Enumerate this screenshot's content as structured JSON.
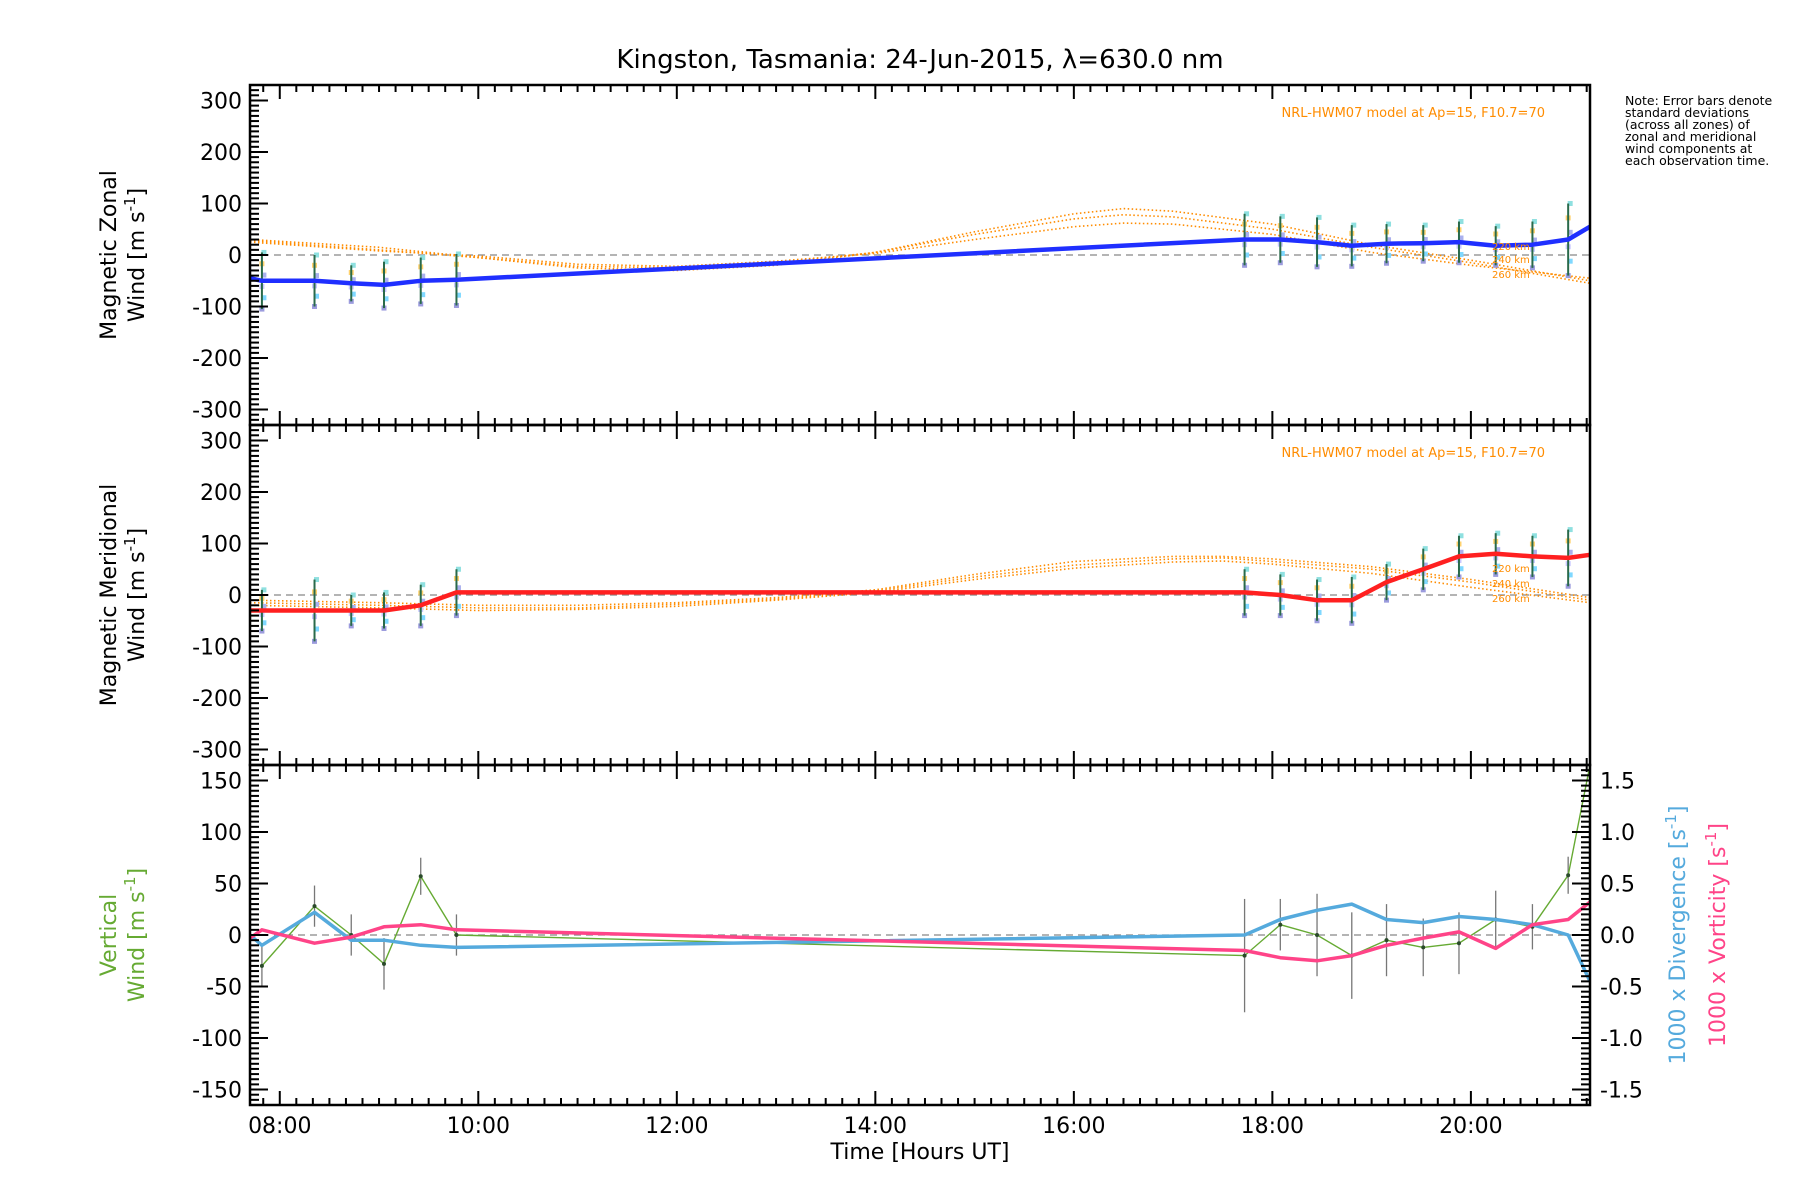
{
  "chart_data": {
    "type": "line",
    "title": "Kingston, Tasmania: 24-Jun-2015, λ=630.0 nm",
    "note": "Note: Error bars denote standard deviations (across all zones) of zonal and meridional wind components at each observation time.",
    "xlabel": "Time [Hours UT]",
    "xlim": [
      7.7,
      21.2
    ],
    "x_ticks": [
      {
        "value": 8,
        "label": "08:00"
      },
      {
        "value": 10,
        "label": "10:00"
      },
      {
        "value": 12,
        "label": "12:00"
      },
      {
        "value": 14,
        "label": "14:00"
      },
      {
        "value": 16,
        "label": "16:00"
      },
      {
        "value": 18,
        "label": "18:00"
      },
      {
        "value": 20,
        "label": "20:00"
      }
    ],
    "obs_times": [
      7.82,
      8.35,
      8.72,
      9.05,
      9.42,
      9.78,
      17.72,
      18.08,
      18.45,
      18.8,
      19.15,
      19.52,
      19.88,
      20.25,
      20.62,
      20.98
    ],
    "panels": [
      {
        "id": "zonal",
        "ylabel_line1": "Magnetic Zonal",
        "ylabel_line2": "Wind [m s",
        "ylabel_sup": "-1",
        "ylabel_close": "]",
        "ylim": [
          -330,
          330
        ],
        "yticks": [
          -300,
          -200,
          -100,
          0,
          100,
          200,
          300
        ],
        "model_label": "NRL-HWM07 model at Ap=15, F10.7=70",
        "altitude_labels": [
          "220 km",
          "240 km",
          "260 km"
        ],
        "series": {
          "name": "zonal",
          "color": "#1f2fff",
          "x": [
            7.7,
            7.82,
            8.35,
            8.72,
            9.05,
            9.42,
            9.78,
            17.72,
            18.08,
            18.45,
            18.8,
            19.15,
            19.52,
            19.88,
            20.25,
            20.62,
            20.98,
            21.2
          ],
          "y": [
            -45,
            -50,
            -50,
            -55,
            -58,
            -50,
            -48,
            30,
            30,
            25,
            18,
            22,
            23,
            25,
            18,
            20,
            30,
            55
          ],
          "err": [
            null,
            55,
            50,
            35,
            45,
            45,
            50,
            50,
            45,
            48,
            40,
            38,
            35,
            40,
            38,
            45,
            70,
            null
          ]
        },
        "models": [
          {
            "x": [
              7.7,
              9,
              10,
              11,
              12,
              13,
              14,
              15,
              16,
              16.5,
              17,
              18,
              19,
              20,
              21.2
            ],
            "y": [
              30,
              15,
              -5,
              -25,
              -30,
              -20,
              5,
              45,
              80,
              90,
              85,
              60,
              20,
              -10,
              -50
            ]
          },
          {
            "x": [
              7.7,
              9,
              10,
              11,
              12,
              13,
              14,
              15,
              16,
              16.5,
              17,
              18,
              19,
              20,
              21.2
            ],
            "y": [
              28,
              10,
              -5,
              -22,
              -25,
              -15,
              5,
              40,
              70,
              78,
              74,
              50,
              15,
              -15,
              -55
            ]
          },
          {
            "x": [
              7.7,
              9,
              10,
              11,
              12,
              13,
              14,
              15,
              16,
              16.5,
              17,
              18,
              19,
              20,
              21.2
            ],
            "y": [
              25,
              8,
              -2,
              -18,
              -22,
              -12,
              3,
              30,
              55,
              62,
              60,
              40,
              5,
              -20,
              -45
            ]
          }
        ]
      },
      {
        "id": "meridional",
        "ylabel_line1": "Magnetic Meridional",
        "ylabel_line2": "Wind [m s",
        "ylabel_sup": "-1",
        "ylabel_close": "]",
        "ylim": [
          -330,
          330
        ],
        "yticks": [
          -300,
          -200,
          -100,
          0,
          100,
          200,
          300
        ],
        "model_label": "NRL-HWM07 model at Ap=15, F10.7=70",
        "altitude_labels": [
          "220 km",
          "240 km",
          "260 km"
        ],
        "series": {
          "name": "meridional",
          "color": "#ff2020",
          "x": [
            7.7,
            7.82,
            8.35,
            8.72,
            9.05,
            9.42,
            9.78,
            17.72,
            18.08,
            18.45,
            18.8,
            19.15,
            19.52,
            19.88,
            20.25,
            20.62,
            20.98,
            21.2
          ],
          "y": [
            -30,
            -30,
            -30,
            -30,
            -30,
            -20,
            5,
            5,
            0,
            -10,
            -10,
            25,
            50,
            75,
            80,
            75,
            72,
            78
          ],
          "err": [
            null,
            40,
            60,
            30,
            35,
            40,
            45,
            45,
            40,
            40,
            45,
            35,
            40,
            40,
            40,
            40,
            55,
            null
          ]
        },
        "models": [
          {
            "x": [
              7.7,
              9,
              10,
              11,
              12,
              13,
              14,
              15,
              16,
              17,
              17.5,
              18,
              19,
              20,
              21.2
            ],
            "y": [
              -10,
              -15,
              -20,
              -20,
              -15,
              -5,
              10,
              40,
              65,
              75,
              75,
              70,
              55,
              30,
              -5
            ]
          },
          {
            "x": [
              7.7,
              9,
              10,
              11,
              12,
              13,
              14,
              15,
              16,
              17,
              17.5,
              18,
              19,
              20,
              21.2
            ],
            "y": [
              -15,
              -20,
              -25,
              -25,
              -18,
              -8,
              8,
              35,
              58,
              70,
              72,
              65,
              50,
              25,
              -10
            ]
          },
          {
            "x": [
              7.7,
              9,
              10,
              11,
              12,
              13,
              14,
              15,
              16,
              17,
              17.5,
              18,
              19,
              20,
              21.2
            ],
            "y": [
              -20,
              -25,
              -30,
              -28,
              -22,
              -10,
              5,
              30,
              52,
              64,
              66,
              60,
              42,
              15,
              -15
            ]
          }
        ]
      },
      {
        "id": "vertical",
        "ylabel_line1": "Vertical",
        "ylabel_line2": "Wind [m s",
        "ylabel_sup": "-1",
        "ylabel_close": "]",
        "ylabel_color": "#66aa33",
        "ylim": [
          -165,
          165
        ],
        "yticks": [
          -150,
          -100,
          -50,
          0,
          50,
          100,
          150
        ],
        "y2lim": [
          -1.65,
          1.65
        ],
        "y2ticks": [
          -1.5,
          -1.0,
          -0.5,
          0.0,
          0.5,
          1.0,
          1.5
        ],
        "y2labels": [
          {
            "text_pre": "1000 x Divergence [s",
            "sup": "-1",
            "close": "]",
            "color": "#55aadd"
          },
          {
            "text_pre": "1000 x Vorticity [s",
            "sup": "-1",
            "close": "]",
            "color": "#ff4488"
          }
        ],
        "vertical": {
          "name": "vertical",
          "color": "#66aa33",
          "x": [
            7.82,
            8.35,
            8.72,
            9.05,
            9.42,
            9.78,
            17.72,
            18.08,
            18.45,
            18.8,
            19.15,
            19.52,
            19.88,
            20.25,
            20.62,
            20.98,
            21.2
          ],
          "y": [
            -30,
            28,
            0,
            -28,
            57,
            0,
            -20,
            10,
            0,
            -20,
            -5,
            -12,
            -8,
            15,
            8,
            58,
            165
          ],
          "err": [
            20,
            20,
            20,
            25,
            18,
            20,
            55,
            25,
            40,
            42,
            35,
            28,
            30,
            28,
            22,
            18,
            null
          ]
        },
        "divergence": {
          "name": "divergence",
          "color": "#55aadd",
          "x": [
            7.7,
            7.82,
            8.35,
            8.72,
            9.05,
            9.42,
            9.78,
            17.72,
            18.08,
            18.45,
            18.8,
            19.15,
            19.52,
            19.88,
            20.25,
            20.62,
            20.98,
            21.2
          ],
          "y": [
            0.0,
            -0.1,
            0.22,
            -0.05,
            -0.05,
            -0.1,
            -0.12,
            0.0,
            0.15,
            0.24,
            0.3,
            0.15,
            0.12,
            0.18,
            0.15,
            0.1,
            0.0,
            -0.45
          ]
        },
        "vorticity": {
          "name": "vorticity",
          "color": "#ff4488",
          "x": [
            7.7,
            7.82,
            8.35,
            8.72,
            9.05,
            9.42,
            9.78,
            17.72,
            18.08,
            18.45,
            18.8,
            19.15,
            19.52,
            19.88,
            20.25,
            20.62,
            20.98,
            21.2
          ],
          "y": [
            -0.03,
            0.05,
            -0.08,
            -0.02,
            0.08,
            0.1,
            0.05,
            -0.15,
            -0.22,
            -0.25,
            -0.2,
            -0.1,
            -0.03,
            0.03,
            -0.13,
            0.1,
            0.15,
            0.32
          ]
        }
      }
    ]
  }
}
